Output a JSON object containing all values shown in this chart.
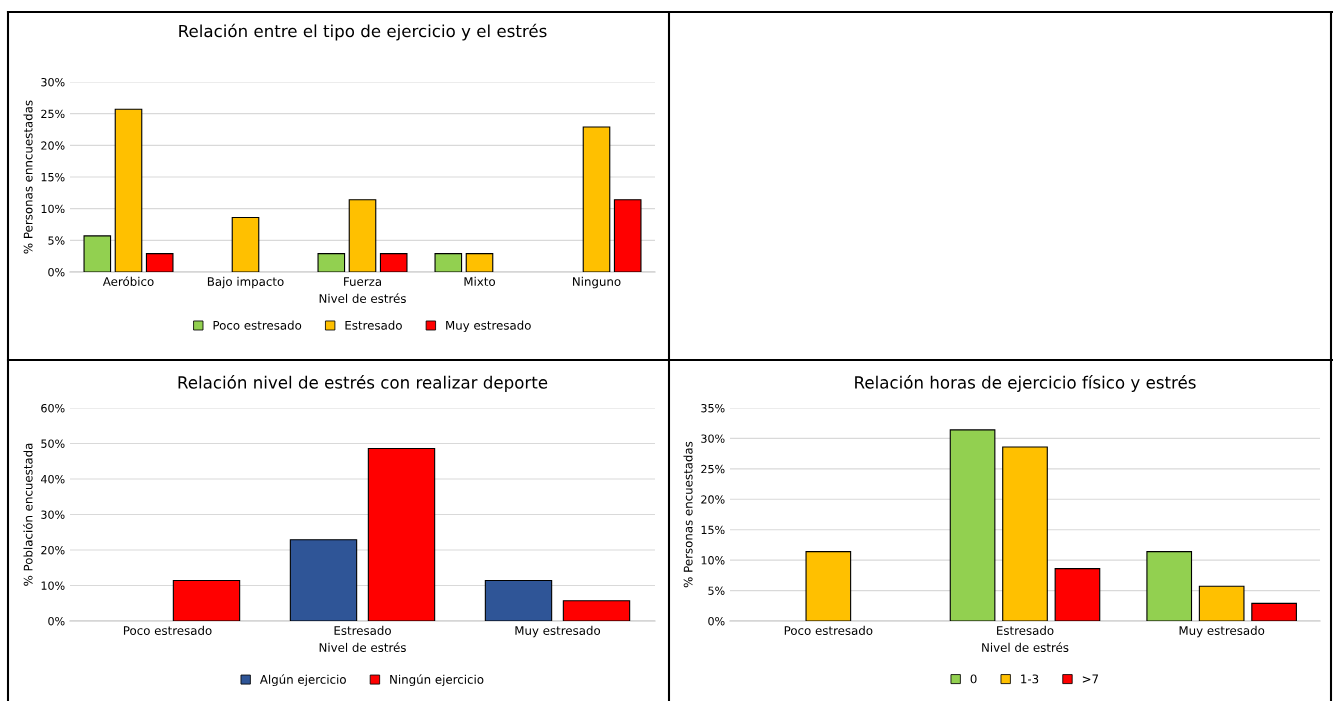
{
  "chart_data": [
    {
      "type": "bar",
      "title": "Relación entre el tipo de ejercicio y el estrés",
      "xlabel": "Nivel de estrés",
      "ylabel": "% Personas enncuestadas",
      "categories": [
        "Aeróbico",
        "Bajo impacto",
        "Fuerza",
        "Mixto",
        "Ninguno"
      ],
      "series": [
        {
          "name": "Poco estresado",
          "color": "#92d050",
          "values": [
            5.7,
            null,
            2.9,
            2.9,
            null
          ]
        },
        {
          "name": "Estresado",
          "color": "#ffc000",
          "values": [
            25.7,
            8.6,
            11.4,
            2.9,
            22.9
          ]
        },
        {
          "name": "Muy estresado",
          "color": "#ff0000",
          "values": [
            2.9,
            null,
            2.9,
            null,
            11.4
          ]
        }
      ],
      "ylim": [
        0,
        30
      ],
      "yticks": [
        {
          "value": 0,
          "label": "0%"
        },
        {
          "value": 5,
          "label": "5%"
        },
        {
          "value": 10,
          "label": "10%"
        },
        {
          "value": 15,
          "label": "15%"
        },
        {
          "value": 20,
          "label": "20%"
        },
        {
          "value": 25,
          "label": "25%"
        },
        {
          "value": 30,
          "label": "30%"
        }
      ],
      "grid": "y",
      "legend": "bottom"
    },
    {
      "type": "bar",
      "title": "Relación nivel de estrés con realizar deporte",
      "xlabel": "Nivel de estrés",
      "ylabel": "% Población encuestada",
      "categories": [
        "Poco estresado",
        "Estresado",
        "Muy estresado"
      ],
      "series": [
        {
          "name": "Algún ejercicio",
          "color": "#2f5597",
          "values": [
            null,
            22.9,
            11.4
          ]
        },
        {
          "name": "Ningún ejercicio",
          "color": "#ff0000",
          "values": [
            11.4,
            48.6,
            5.7
          ]
        }
      ],
      "ylim": [
        0,
        60
      ],
      "yticks": [
        {
          "value": 0,
          "label": "0%"
        },
        {
          "value": 10,
          "label": "10%"
        },
        {
          "value": 20,
          "label": "20%"
        },
        {
          "value": 30,
          "label": "30%"
        },
        {
          "value": 40,
          "label": "40%"
        },
        {
          "value": 50,
          "label": "50%"
        },
        {
          "value": 60,
          "label": "60%"
        }
      ],
      "grid": "y",
      "legend": "bottom"
    },
    {
      "type": "bar",
      "title": "Relación horas de ejercicio físico y estrés",
      "xlabel": "Nivel de estrés",
      "ylabel": "% Personas encuestadas",
      "categories": [
        "Poco estresado",
        "Estresado",
        "Muy estresado"
      ],
      "series": [
        {
          "name": "0",
          "color": "#92d050",
          "values": [
            null,
            31.4,
            11.4
          ]
        },
        {
          "name": "1-3",
          "color": "#ffc000",
          "values": [
            11.4,
            28.6,
            5.7
          ]
        },
        {
          "name": ">7",
          "color": "#ff0000",
          "values": [
            null,
            8.6,
            2.9
          ]
        }
      ],
      "ylim": [
        0,
        35
      ],
      "yticks": [
        {
          "value": 0,
          "label": "0%"
        },
        {
          "value": 5,
          "label": "5%"
        },
        {
          "value": 10,
          "label": "10%"
        },
        {
          "value": 15,
          "label": "15%"
        },
        {
          "value": 20,
          "label": "20%"
        },
        {
          "value": 25,
          "label": "25%"
        },
        {
          "value": 30,
          "label": "30%"
        },
        {
          "value": 35,
          "label": "35%"
        }
      ],
      "grid": "y",
      "legend": "bottom"
    }
  ]
}
